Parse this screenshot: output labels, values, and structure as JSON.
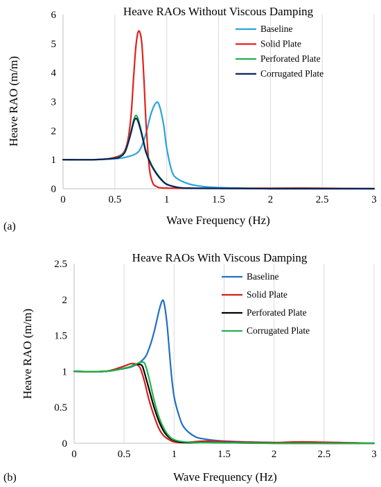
{
  "chart_data": [
    {
      "type": "line",
      "panel_label": "(a)",
      "title": "Heave RAOs Without Viscous Damping",
      "xlabel": "Wave Frequency (Hz)",
      "ylabel": "Heave RAO (m/m)",
      "xlim": [
        0,
        3
      ],
      "ylim": [
        0,
        6
      ],
      "xticks": [
        0,
        0.5,
        1,
        1.5,
        2,
        2.5,
        3
      ],
      "xtick_labels": [
        "0",
        "0.5",
        "1",
        "1.5",
        "2",
        "2.5",
        "3"
      ],
      "yticks": [
        0,
        1,
        2,
        3,
        4,
        5,
        6
      ],
      "ytick_labels": [
        "0",
        "1",
        "2",
        "3",
        "4",
        "5",
        "6"
      ],
      "grid": "vertical",
      "legend_position": "top-right",
      "series": [
        {
          "name": "Baseline",
          "color": "#2aa3dc",
          "x": [
            0,
            0.3,
            0.5,
            0.6,
            0.7,
            0.75,
            0.8,
            0.85,
            0.9,
            0.93,
            0.97,
            1.0,
            1.05,
            1.1,
            1.2,
            1.3,
            1.5,
            2.0,
            2.5,
            3.0
          ],
          "y": [
            1.0,
            1.0,
            1.03,
            1.08,
            1.2,
            1.4,
            1.9,
            2.6,
            2.97,
            2.85,
            2.2,
            1.4,
            0.6,
            0.35,
            0.18,
            0.1,
            0.04,
            0.01,
            0.01,
            0.0
          ]
        },
        {
          "name": "Solid Plate",
          "color": "#e2201c",
          "x": [
            0,
            0.3,
            0.5,
            0.6,
            0.65,
            0.68,
            0.7,
            0.72,
            0.74,
            0.76,
            0.78,
            0.8,
            0.83,
            0.86,
            0.9,
            1.0,
            1.5,
            2.3,
            3.0
          ],
          "y": [
            1.0,
            1.0,
            1.08,
            1.35,
            2.3,
            3.8,
            4.8,
            5.35,
            5.4,
            5.0,
            3.8,
            2.3,
            0.8,
            0.25,
            0.08,
            0.02,
            0.01,
            0.02,
            0.0
          ]
        },
        {
          "name": "Perforated Plate",
          "color": "#1db34a",
          "x": [
            0,
            0.3,
            0.5,
            0.55,
            0.6,
            0.65,
            0.68,
            0.7,
            0.72,
            0.75,
            0.78,
            0.8,
            0.85,
            0.9,
            0.95,
            1.0,
            1.1,
            1.2,
            1.5,
            2.0,
            3.0
          ],
          "y": [
            1.0,
            1.0,
            1.05,
            1.12,
            1.3,
            1.9,
            2.35,
            2.52,
            2.45,
            2.05,
            1.6,
            1.3,
            0.85,
            0.55,
            0.32,
            0.16,
            0.05,
            0.02,
            0.01,
            0.0,
            0.0
          ]
        },
        {
          "name": "Corrugated Plate",
          "color": "#0c1f5c",
          "x": [
            0,
            0.3,
            0.5,
            0.55,
            0.6,
            0.65,
            0.68,
            0.7,
            0.72,
            0.75,
            0.78,
            0.8,
            0.85,
            0.9,
            0.95,
            1.0,
            1.1,
            1.2,
            1.5,
            2.0,
            3.0
          ],
          "y": [
            1.0,
            1.0,
            1.05,
            1.1,
            1.28,
            1.85,
            2.28,
            2.42,
            2.35,
            2.0,
            1.55,
            1.25,
            0.82,
            0.52,
            0.3,
            0.15,
            0.05,
            0.02,
            0.01,
            0.0,
            0.0
          ]
        }
      ]
    },
    {
      "type": "line",
      "panel_label": "(b)",
      "title": "Heave RAOs With Viscous Damping",
      "xlabel": "Wave Frequency (Hz)",
      "ylabel": "Heave RAO (m/m)",
      "xlim": [
        0,
        3
      ],
      "ylim": [
        0,
        2.5
      ],
      "xticks": [
        0,
        0.5,
        1,
        1.5,
        2,
        2.5,
        3
      ],
      "xtick_labels": [
        "0",
        "0.5",
        "1",
        "1.5",
        "2",
        "2.5",
        "3"
      ],
      "yticks": [
        0,
        0.5,
        1,
        1.5,
        2,
        2.5
      ],
      "ytick_labels": [
        "0",
        "0.5",
        "1",
        "1.5",
        "2",
        "2.5"
      ],
      "grid": "vertical",
      "legend_position": "top-right",
      "series": [
        {
          "name": "Baseline",
          "color": "#1f6fc4",
          "x": [
            0,
            0.3,
            0.5,
            0.6,
            0.7,
            0.75,
            0.8,
            0.85,
            0.88,
            0.9,
            0.93,
            0.97,
            1.0,
            1.05,
            1.1,
            1.2,
            1.3,
            1.5,
            2.0,
            2.5,
            3.0
          ],
          "y": [
            1.0,
            1.0,
            1.04,
            1.08,
            1.18,
            1.32,
            1.55,
            1.85,
            1.98,
            1.95,
            1.65,
            1.0,
            0.65,
            0.38,
            0.22,
            0.1,
            0.06,
            0.03,
            0.01,
            0.0,
            0.0
          ]
        },
        {
          "name": "Solid Plate",
          "color": "#d2201c",
          "x": [
            0,
            0.3,
            0.45,
            0.55,
            0.58,
            0.62,
            0.66,
            0.7,
            0.75,
            0.8,
            0.85,
            0.9,
            0.95,
            1.0,
            1.1,
            1.3,
            1.6,
            2.0,
            2.3,
            3.0
          ],
          "y": [
            1.0,
            1.0,
            1.05,
            1.1,
            1.11,
            1.1,
            1.05,
            0.88,
            0.6,
            0.38,
            0.2,
            0.1,
            0.05,
            0.02,
            0.01,
            0.03,
            0.02,
            0.01,
            0.02,
            0.0
          ]
        },
        {
          "name": "Perforated Plate",
          "color": "#000000",
          "x": [
            0,
            0.3,
            0.45,
            0.55,
            0.6,
            0.65,
            0.68,
            0.7,
            0.75,
            0.8,
            0.85,
            0.9,
            0.95,
            1.0,
            1.1,
            1.3,
            2.0,
            3.0
          ],
          "y": [
            1.0,
            1.0,
            1.03,
            1.06,
            1.09,
            1.1,
            1.08,
            1.0,
            0.75,
            0.5,
            0.3,
            0.16,
            0.08,
            0.04,
            0.01,
            0.01,
            0.0,
            0.0
          ]
        },
        {
          "name": "Corrugated Plate",
          "color": "#1db34a",
          "x": [
            0,
            0.3,
            0.45,
            0.55,
            0.6,
            0.65,
            0.68,
            0.71,
            0.75,
            0.8,
            0.85,
            0.9,
            0.95,
            1.0,
            1.1,
            1.3,
            2.0,
            3.0
          ],
          "y": [
            1.0,
            1.0,
            1.03,
            1.06,
            1.09,
            1.12,
            1.13,
            1.1,
            0.9,
            0.6,
            0.36,
            0.2,
            0.1,
            0.05,
            0.02,
            0.01,
            0.0,
            0.0
          ]
        }
      ]
    }
  ]
}
